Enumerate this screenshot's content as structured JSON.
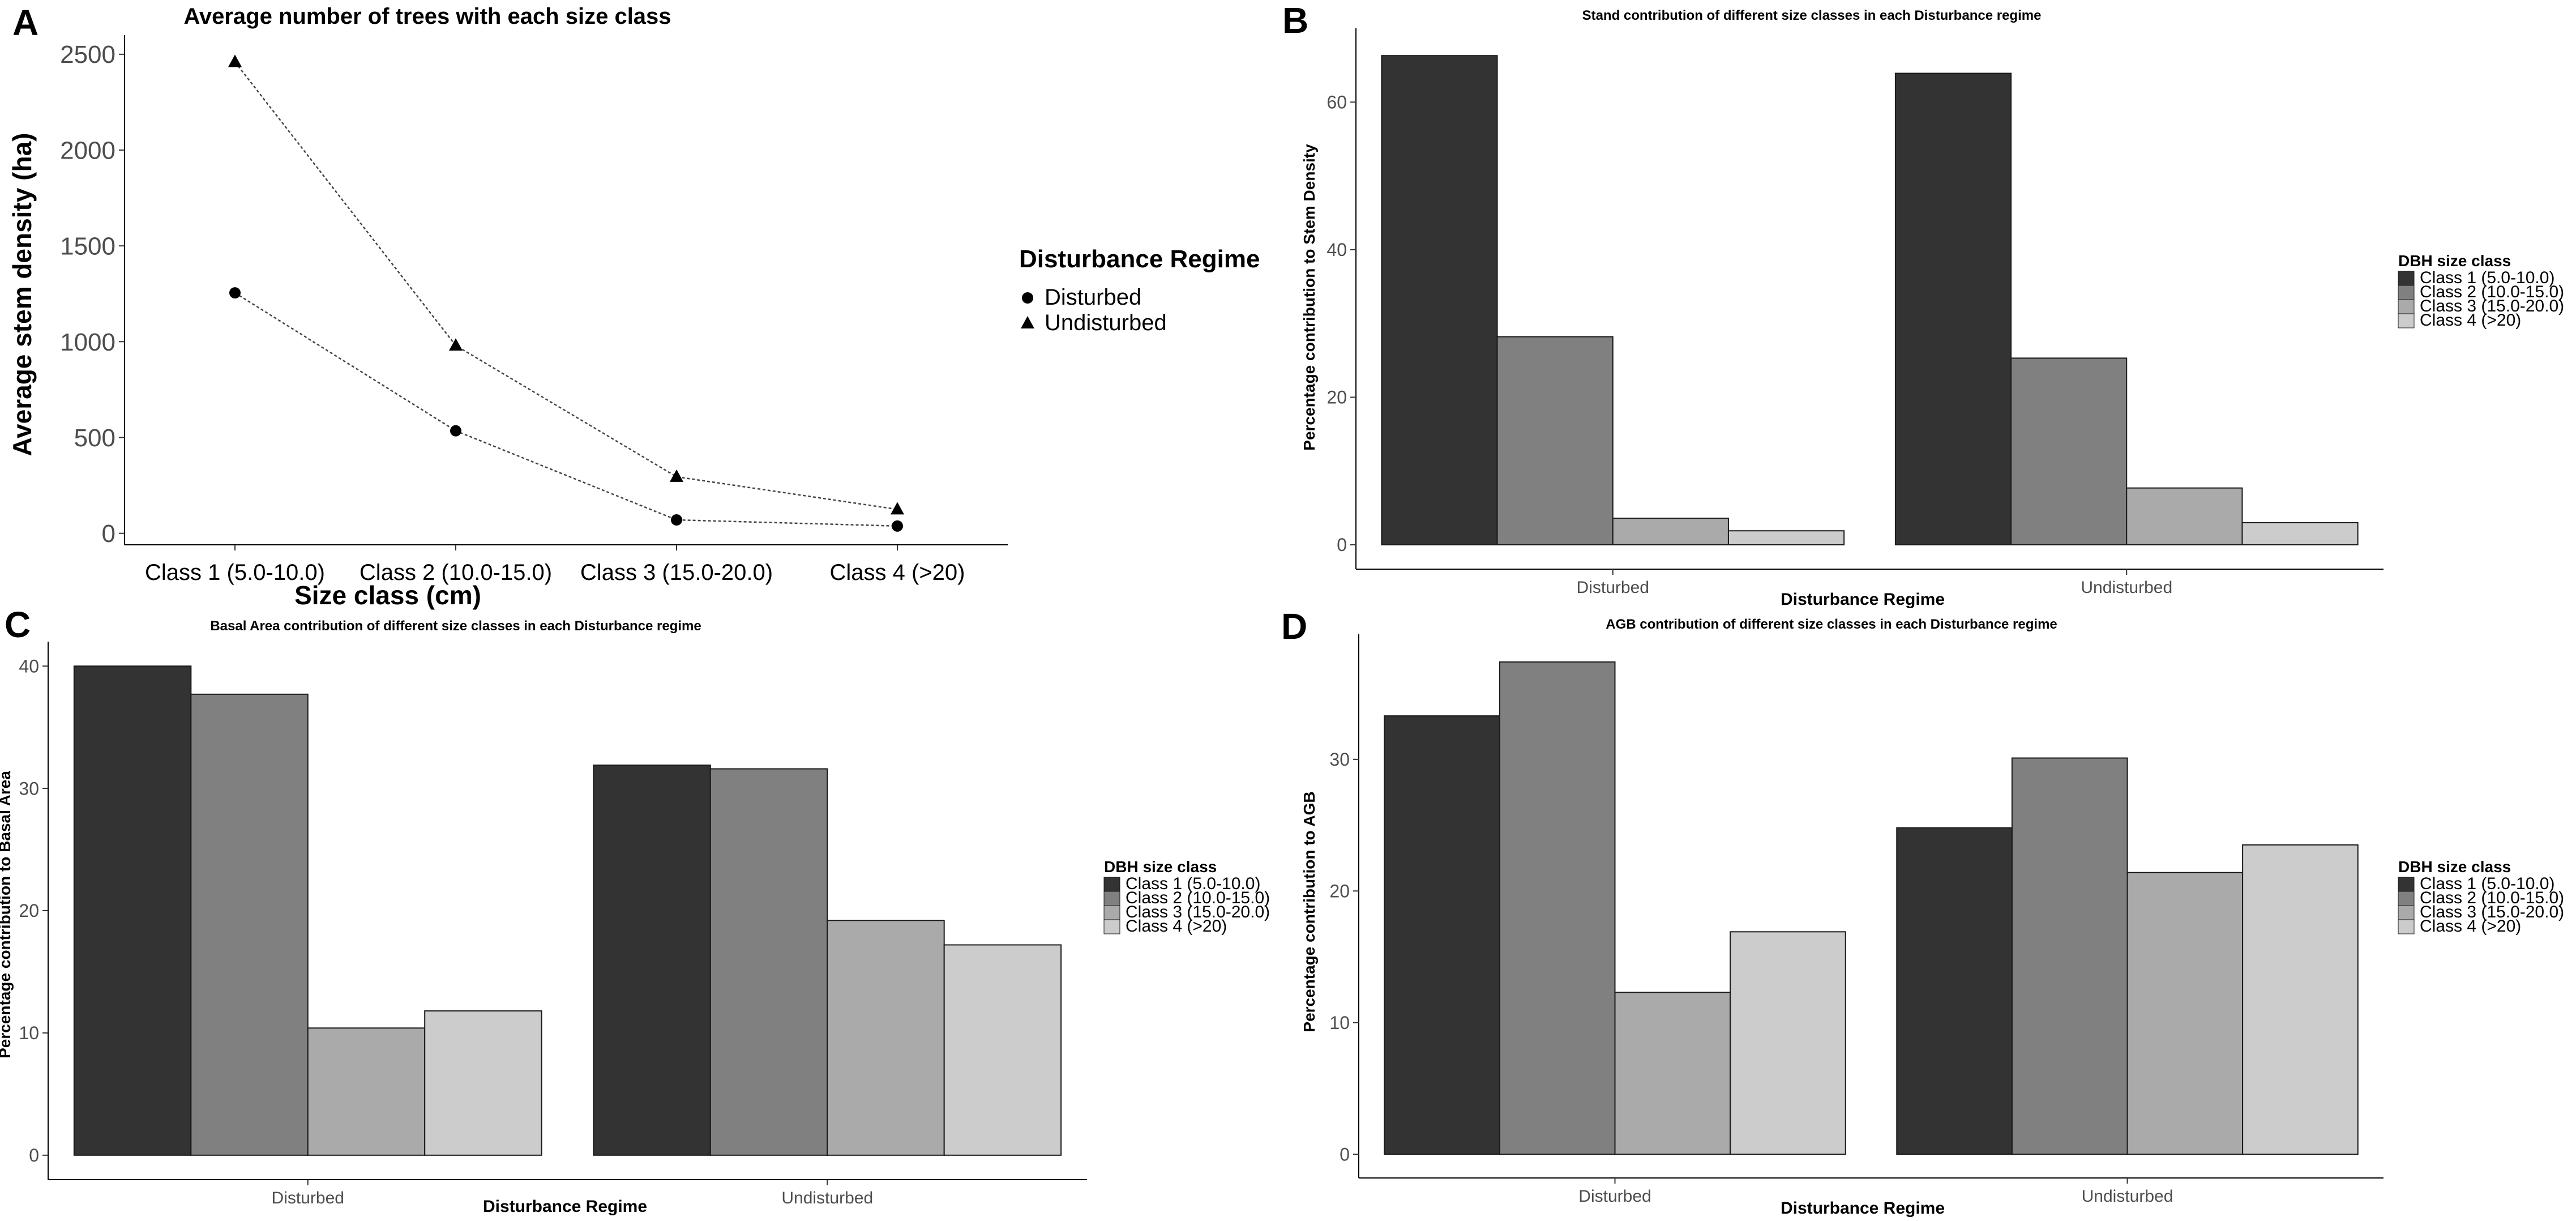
{
  "chart_data": [
    {
      "panel_letter": "A",
      "type": "line",
      "title": "Average number of trees with each size class",
      "xlabel": "Size class (cm)",
      "ylabel": "Average stem density (ha)",
      "categories": [
        "Class 1 (5.0-10.0)",
        "Class 2 (10.0-15.0)",
        "Class 3 (15.0-20.0)",
        "Class 4 (>20)"
      ],
      "series": [
        {
          "name": "Disturbed",
          "marker": "circle",
          "values": [
            1255,
            535,
            70,
            38
          ]
        },
        {
          "name": "Undisturbed",
          "marker": "triangle",
          "values": [
            2460,
            980,
            295,
            125
          ]
        }
      ],
      "ylim": [
        -60,
        2600
      ],
      "yticks": [
        0,
        500,
        1000,
        1500,
        2000,
        2500
      ],
      "legend_title": "Disturbance Regime",
      "legend_position": "right"
    },
    {
      "panel_letter": "B",
      "type": "bar",
      "title": "Stand contribution of different size classes in each Disturbance regime",
      "xlabel": "Disturbance Regime",
      "ylabel": "Percentage contribution to Stem Density",
      "categories": [
        "Disturbed",
        "Undisturbed"
      ],
      "series": [
        {
          "name": "Class 1 (5.0-10.0)",
          "color": "#333333",
          "values": [
            66.3,
            63.9
          ]
        },
        {
          "name": "Class 2 (10.0-15.0)",
          "color": "#808080",
          "values": [
            28.2,
            25.3
          ]
        },
        {
          "name": "Class 3 (15.0-20.0)",
          "color": "#aaaaaa",
          "values": [
            3.6,
            7.7
          ]
        },
        {
          "name": "Class 4 (>20)",
          "color": "#cccccc",
          "values": [
            1.9,
            3.0
          ]
        }
      ],
      "ylim": [
        -3.3,
        70
      ],
      "yticks": [
        0,
        20,
        40,
        60
      ],
      "legend_title": "DBH size class",
      "legend_position": "right"
    },
    {
      "panel_letter": "C",
      "type": "bar",
      "title": "Basal Area contribution of different size classes in each Disturbance regime",
      "xlabel": "Disturbance Regime",
      "ylabel": "Percentage contribution to Basal Area",
      "categories": [
        "Disturbed",
        "Undisturbed"
      ],
      "series": [
        {
          "name": "Class 1 (5.0-10.0)",
          "color": "#333333",
          "values": [
            40.0,
            31.9
          ]
        },
        {
          "name": "Class 2 (10.0-15.0)",
          "color": "#808080",
          "values": [
            37.7,
            31.6
          ]
        },
        {
          "name": "Class 3 (15.0-20.0)",
          "color": "#aaaaaa",
          "values": [
            10.4,
            19.2
          ]
        },
        {
          "name": "Class 4 (>20)",
          "color": "#cccccc",
          "values": [
            11.8,
            17.2
          ]
        }
      ],
      "ylim": [
        -2,
        42
      ],
      "yticks": [
        0,
        10,
        20,
        30,
        40
      ],
      "legend_title": "DBH size class",
      "legend_position": "right"
    },
    {
      "panel_letter": "D",
      "type": "bar",
      "title": "AGB contribution of different size classes in each Disturbance regime",
      "xlabel": "Disturbance Regime",
      "ylabel": "Percentage contribution to AGB",
      "categories": [
        "Disturbed",
        "Undisturbed"
      ],
      "series": [
        {
          "name": "Class 1 (5.0-10.0)",
          "color": "#333333",
          "values": [
            33.3,
            24.8
          ]
        },
        {
          "name": "Class 2 (10.0-15.0)",
          "color": "#808080",
          "values": [
            37.4,
            30.1
          ]
        },
        {
          "name": "Class 3 (15.0-20.0)",
          "color": "#aaaaaa",
          "values": [
            12.3,
            21.4
          ]
        },
        {
          "name": "Class 4 (>20)",
          "color": "#cccccc",
          "values": [
            16.9,
            23.5
          ]
        }
      ],
      "ylim": [
        -1.8,
        39.5
      ],
      "yticks": [
        0,
        10,
        20,
        30
      ],
      "legend_title": "DBH size class",
      "legend_position": "right"
    }
  ]
}
